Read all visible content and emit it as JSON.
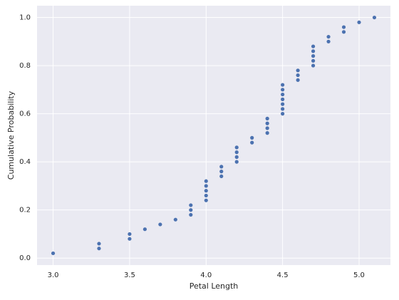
{
  "chart_data": {
    "type": "scatter",
    "xlabel": "Petal Length",
    "ylabel": "Cumulative Probability",
    "color": "#4c72b0",
    "grid": true,
    "x": [
      3.0,
      3.3,
      3.3,
      3.5,
      3.5,
      3.6,
      3.7,
      3.8,
      3.9,
      3.9,
      3.9,
      4.0,
      4.0,
      4.0,
      4.0,
      4.0,
      4.1,
      4.1,
      4.1,
      4.2,
      4.2,
      4.2,
      4.2,
      4.3,
      4.3,
      4.4,
      4.4,
      4.4,
      4.4,
      4.5,
      4.5,
      4.5,
      4.5,
      4.5,
      4.5,
      4.5,
      4.6,
      4.6,
      4.6,
      4.7,
      4.7,
      4.7,
      4.7,
      4.7,
      4.8,
      4.8,
      4.9,
      4.9,
      5.0,
      5.1
    ],
    "values": [
      0.02,
      0.04,
      0.06,
      0.08,
      0.1,
      0.12,
      0.14,
      0.16,
      0.18,
      0.2,
      0.22,
      0.24,
      0.26,
      0.28,
      0.3,
      0.32,
      0.34,
      0.36,
      0.38,
      0.4,
      0.42,
      0.44,
      0.46,
      0.48,
      0.5,
      0.52,
      0.54,
      0.56,
      0.58,
      0.6,
      0.62,
      0.64,
      0.66,
      0.68,
      0.7,
      0.72,
      0.74,
      0.76,
      0.78,
      0.8,
      0.82,
      0.84,
      0.86,
      0.88,
      0.9,
      0.92,
      0.94,
      0.96,
      0.98,
      1.0
    ],
    "xlim": [
      2.895,
      5.205
    ],
    "xticks": [
      {
        "value": 3,
        "label": "3.0"
      },
      3.5,
      {
        "value": 4,
        "label": "4.0"
      },
      4.5,
      {
        "value": 5,
        "label": "5.0"
      }
    ],
    "ylim": [
      -0.029,
      1.049
    ],
    "yticks": [
      {
        "value": 0,
        "label": "0.0"
      },
      0.2,
      0.4,
      0.6,
      0.8,
      {
        "value": 1,
        "label": "1.0"
      }
    ]
  }
}
